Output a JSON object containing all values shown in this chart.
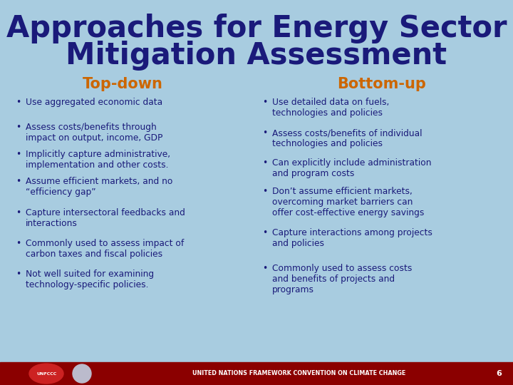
{
  "title_line1": "Approaches for Energy Sector",
  "title_line2": "Mitigation Assessment",
  "title_color": "#1a1a7a",
  "background_color": "#a8cce0",
  "header_left": "Top-down",
  "header_right": "Bottom-up",
  "header_color": "#cc6600",
  "text_color": "#1a1a7a",
  "bullet_char": "•",
  "footer_bg": "#8b0000",
  "footer_text": "UNITED NATIONS FRAMEWORK CONVENTION ON CLIMATE CHANGE",
  "footer_number": "6",
  "left_bullets": [
    "Use aggregated economic data",
    "Assess costs/benefits through\nimpact on output, income, GDP",
    "Implicitly capture administrative,\nimplementation and other costs.",
    "Assume efficient markets, and no\n“efficiency gap”",
    "Capture intersectoral feedbacks and\ninteractions",
    "Commonly used to assess impact of\ncarbon taxes and fiscal policies",
    "Not well suited for examining\ntechnology-specific policies."
  ],
  "right_bullets": [
    "Use detailed data on fuels,\ntechnologies and policies",
    "Assess costs/benefits of individual\ntechnologies and policies",
    "Can explicitly include administration\nand program costs",
    "Don’t assume efficient markets,\novercoming market barriers can\noffer cost-effective energy savings",
    "Capture interactions among projects\nand policies",
    "Commonly used to assess costs\nand benefits of projects and\nprograms"
  ],
  "title_fontsize": 30,
  "header_fontsize": 15,
  "body_fontsize": 8.8,
  "footer_fontsize": 5.8
}
